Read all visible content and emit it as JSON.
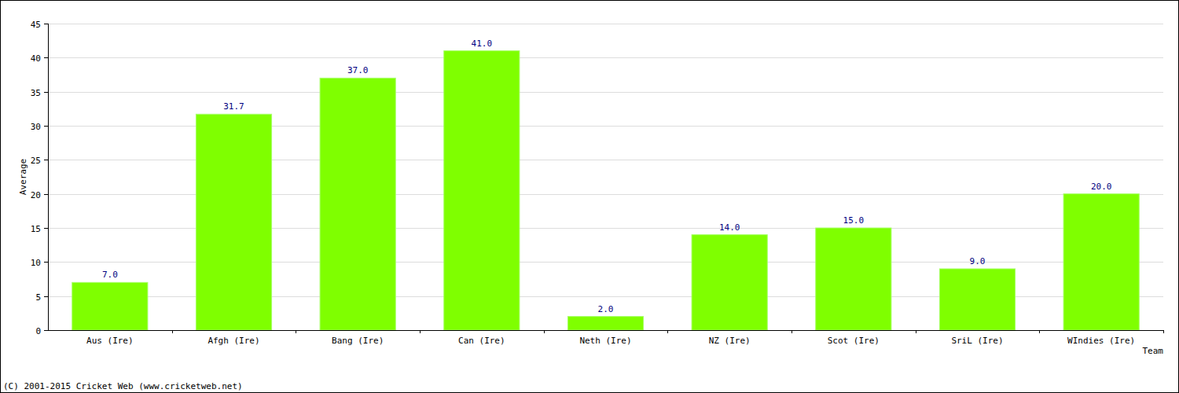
{
  "chart_data": {
    "type": "bar",
    "y_label": "Average",
    "x_label": "Team",
    "annotations": [
      "(C) 2001-2015 Cricket Web (www.cricketweb.net)"
    ],
    "categories": [
      "Aus (Ire)",
      "Afgh (Ire)",
      "Bang (Ire)",
      "Can (Ire)",
      "Neth (Ire)",
      "NZ (Ire)",
      "Scot (Ire)",
      "SriL (Ire)",
      "WIndies (Ire)"
    ],
    "values": [
      7.0,
      31.7,
      37.0,
      41.0,
      2.0,
      14.0,
      15.0,
      9.0,
      20.0
    ],
    "value_labels": [
      "7.0",
      "31.7",
      "37.0",
      "41.0",
      "2.0",
      "14.0",
      "15.0",
      "9.0",
      "20.0"
    ],
    "color": "#7fff00",
    "ylim": [
      0,
      45
    ],
    "yticks": [
      0,
      5,
      10,
      15,
      20,
      25,
      30,
      35,
      40,
      45
    ],
    "grid": true,
    "data_labels": true
  }
}
